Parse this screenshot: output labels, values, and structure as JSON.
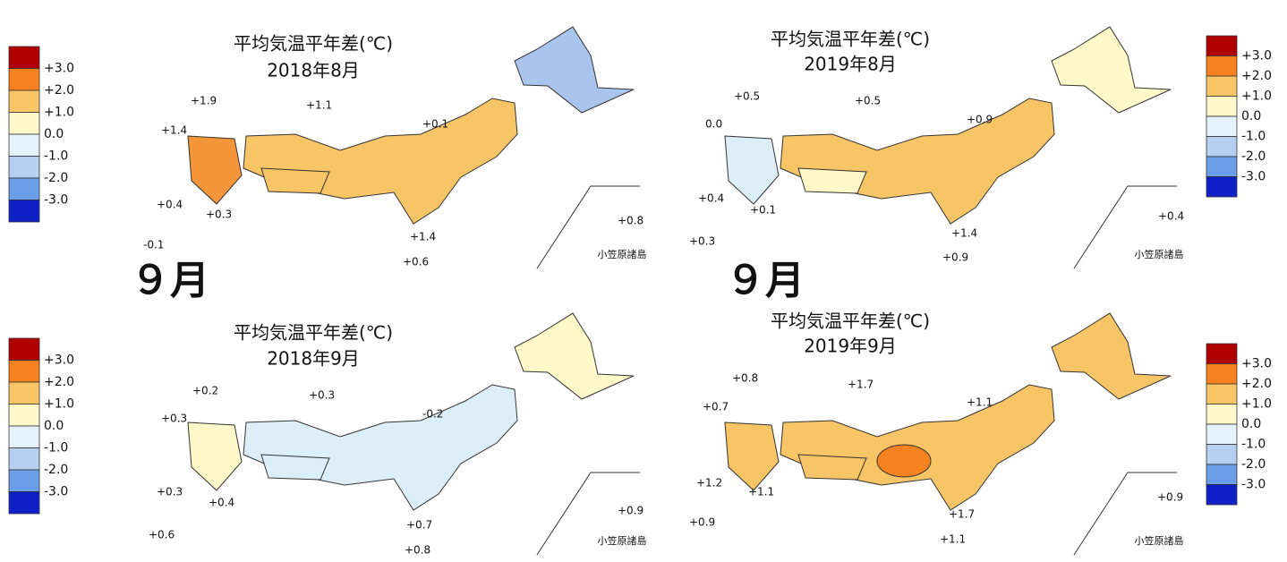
{
  "legend": {
    "labels": [
      "+3.0",
      "+2.0",
      "+1.0",
      "0.0",
      "-1.0",
      "-2.0",
      "-3.0"
    ],
    "colors": [
      "#b00000",
      "#f5821f",
      "#f8c566",
      "#fff8c8",
      "#e4f3fb",
      "#b7cff0",
      "#6b9ee8",
      "#1020c8"
    ]
  },
  "month_headings": [
    "９月",
    "９月"
  ],
  "panels": [
    {
      "title": "平均気温平年差(℃)",
      "period": "2018年8月",
      "inset_label": "小笠原諸島",
      "stations": [
        "+1.9",
        "+1.1",
        "+1.4",
        "+0.1",
        "+0.4",
        "+0.3",
        "-0.1",
        "+0.8",
        "+1.4",
        "+0.6"
      ]
    },
    {
      "title": "平均気温平年差(℃)",
      "period": "2019年8月",
      "inset_label": "小笠原諸島",
      "stations": [
        "+0.5",
        "+0.5",
        "0.0",
        "+0.9",
        "+0.4",
        "+0.1",
        "+0.3",
        "+0.4",
        "+1.4",
        "+0.9"
      ]
    },
    {
      "title": "平均気温平年差(℃)",
      "period": "2018年9月",
      "inset_label": "小笠原諸島",
      "stations": [
        "+0.2",
        "+0.3",
        "+0.3",
        "-0.2",
        "+0.3",
        "+0.4",
        "+0.6",
        "+0.9",
        "+0.7",
        "+0.8"
      ]
    },
    {
      "title": "平均気温平年差(℃)",
      "period": "2019年9月",
      "inset_label": "小笠原諸島",
      "stations": [
        "+0.8",
        "+1.7",
        "+0.7",
        "+1.1",
        "+1.2",
        "+1.1",
        "+0.9",
        "+0.9",
        "+1.7",
        "+1.1"
      ]
    }
  ]
}
